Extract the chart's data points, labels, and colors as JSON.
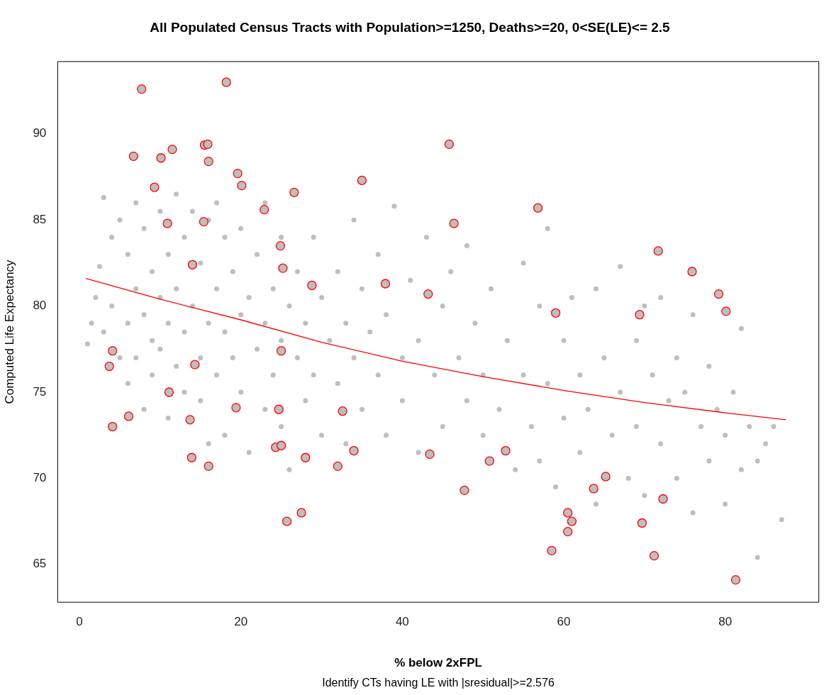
{
  "chart_data": {
    "type": "scatter",
    "title": "All Populated Census Tracts with Population>=1250, Deaths>=20, 0<SE(LE)<= 2.5",
    "xlabel": "% below 2xFPL",
    "ylabel": "Computed Life Expectancy",
    "annotations": [
      "Identify CTs having LE with |sresidual|>=2.576"
    ],
    "xlim": [
      -2.7,
      91.6
    ],
    "ylim": [
      62.8,
      94.2
    ],
    "xticks": [
      0,
      20,
      40,
      60,
      80
    ],
    "yticks": [
      65,
      70,
      75,
      80,
      85,
      90
    ],
    "grid": false,
    "legend": false,
    "marker": "circle",
    "series": [
      {
        "color": "#bebebe",
        "x": [
          1,
          1.5,
          2,
          2.5,
          3,
          3,
          4,
          4,
          5,
          5,
          6,
          6,
          6,
          7,
          7,
          7,
          8,
          8,
          8,
          9,
          9,
          9,
          10,
          10,
          10,
          11,
          11,
          11,
          12,
          12,
          12,
          13,
          13,
          13,
          14,
          14,
          15,
          15,
          15,
          16,
          16,
          16,
          17,
          17,
          17,
          18,
          18,
          18,
          19,
          19,
          20,
          20,
          20,
          21,
          21,
          22,
          22,
          23,
          23,
          23,
          24,
          24,
          25,
          25,
          25,
          26,
          26,
          27,
          27,
          28,
          28,
          29,
          29,
          30,
          30,
          31,
          32,
          32,
          33,
          33,
          34,
          34,
          35,
          35,
          36,
          37,
          37,
          38,
          38,
          39,
          40,
          40,
          41,
          42,
          42,
          43,
          44,
          45,
          45,
          46,
          47,
          48,
          48,
          49,
          50,
          50,
          51,
          52,
          53,
          54,
          55,
          55,
          56,
          57,
          57,
          58,
          58,
          59,
          60,
          60,
          61,
          62,
          62,
          63,
          64,
          64,
          65,
          66,
          67,
          67,
          68,
          69,
          69,
          70,
          70,
          71,
          72,
          72,
          73,
          74,
          74,
          75,
          76,
          76,
          77,
          78,
          78,
          79,
          80,
          80,
          81,
          82,
          82,
          83,
          84,
          84,
          85,
          86,
          87
        ],
        "values": [
          77.8,
          79,
          80.5,
          82.3,
          86.3,
          78.5,
          84,
          80,
          85,
          77,
          83,
          79,
          75.5,
          86,
          81,
          77,
          84.5,
          79.5,
          74,
          82,
          78,
          76,
          85.5,
          80.5,
          77.5,
          83,
          79,
          73.5,
          86.5,
          81,
          76.5,
          84,
          78.5,
          75,
          85.5,
          80,
          82.5,
          77,
          74.5,
          85,
          79,
          72,
          86,
          81,
          76,
          84,
          78.5,
          72.5,
          82,
          77,
          84.5,
          79.5,
          75,
          80.5,
          71.5,
          83,
          77.5,
          86,
          79,
          74,
          81,
          76,
          84,
          78,
          73,
          80,
          70.5,
          82,
          77,
          79,
          74.5,
          84,
          76,
          80.5,
          72.5,
          78,
          82,
          75.5,
          79,
          72,
          85,
          77,
          81,
          74,
          78.5,
          83,
          76,
          79.5,
          72.5,
          85.8,
          77,
          74.5,
          81.5,
          78,
          71.5,
          84,
          76,
          80,
          73,
          82,
          77,
          74.5,
          83.5,
          79,
          76,
          72.5,
          81,
          74,
          78,
          70.5,
          82.5,
          76,
          73,
          80,
          71,
          84.5,
          75.5,
          69.5,
          78,
          73.5,
          80.5,
          71.5,
          76,
          74,
          81,
          68.5,
          77,
          72.5,
          82.3,
          75,
          70,
          78,
          73,
          80,
          69,
          76,
          72,
          80.5,
          74.5,
          70,
          77,
          75,
          68,
          79.5,
          73,
          71,
          76.5,
          74,
          72.5,
          68.5,
          75,
          78.7,
          70.5,
          73,
          71,
          65.4,
          72,
          73,
          67.6
        ]
      },
      {
        "color": "#ff0000",
        "x": [
          7.7,
          18.2,
          6.7,
          10.1,
          11.5,
          9.3,
          15.5,
          15.9,
          16,
          19.6,
          20.1,
          10.9,
          15.4,
          22.9,
          26.6,
          35,
          45.8,
          56.8,
          46.4,
          14,
          24.9,
          25.2,
          28.8,
          37.9,
          43.2,
          59,
          69.4,
          71.7,
          75.9,
          79.2,
          80.1,
          4.1,
          3.7,
          4.1,
          6.1,
          11.1,
          14.3,
          13.7,
          13.9,
          16,
          19.4,
          25,
          24.7,
          24.3,
          25,
          25.7,
          27.5,
          28,
          32,
          32.6,
          34,
          43.4,
          47.7,
          50.8,
          52.8,
          58.5,
          60.5,
          60.5,
          61,
          63.7,
          65.2,
          69.7,
          71.2,
          72.3,
          81.3
        ],
        "values": [
          92.6,
          93,
          88.7,
          88.6,
          89.1,
          86.9,
          89.35,
          89.4,
          88.4,
          87.7,
          87,
          84.8,
          84.9,
          85.6,
          86.6,
          87.3,
          89.4,
          85.7,
          84.8,
          82.4,
          83.5,
          82.2,
          81.2,
          81.3,
          80.7,
          79.6,
          79.5,
          83.2,
          82,
          80.7,
          79.7,
          77.4,
          76.5,
          73,
          73.6,
          75,
          76.6,
          73.4,
          71.2,
          70.7,
          74.1,
          77.4,
          74,
          71.8,
          71.9,
          67.5,
          68,
          71.2,
          70.7,
          73.9,
          71.6,
          71.4,
          69.3,
          71,
          71.6,
          65.8,
          68,
          66.9,
          67.5,
          69.4,
          70.1,
          67.4,
          65.5,
          68.8,
          64.1
        ]
      },
      {
        "type": "line",
        "marker": "none",
        "color": "#ff0000",
        "x": [
          0.8,
          10,
          20,
          30,
          40,
          50,
          60,
          70,
          80,
          87.5
        ],
        "values": [
          81.6,
          80.4,
          79.2,
          77.9,
          76.8,
          75.9,
          75.1,
          74.4,
          73.8,
          73.4
        ]
      }
    ]
  }
}
